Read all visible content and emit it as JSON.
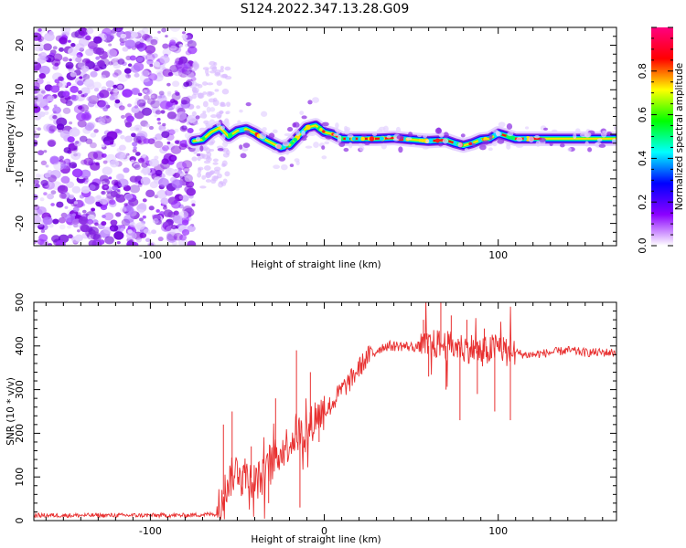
{
  "title": "S124.2022.347.13.28.G09",
  "chart_data": [
    {
      "type": "heatmap",
      "xlabel": "Height of straight line (km)",
      "ylabel": "Frequency (Hz)",
      "xlim": [
        -167,
        168
      ],
      "ylim": [
        -25,
        24
      ],
      "xticks": [
        -100,
        0,
        100
      ],
      "xtick_labels": [
        "-100",
        "",
        "100"
      ],
      "yticks": [
        -20,
        -10,
        0,
        10,
        20
      ],
      "yticks_labels": [
        "-20",
        "-10",
        "0",
        "10",
        "20"
      ],
      "colorbar": {
        "label": "Normalized spectral amplitude",
        "range": [
          0,
          1
        ],
        "ticks": [
          0.0,
          0.2,
          0.4,
          0.6,
          0.8
        ],
        "tick_labels": [
          "0.0",
          "0.2",
          "0.4",
          "0.6",
          "0.8"
        ],
        "colors": [
          "#ffffff",
          "#8b00ff",
          "#0000ff",
          "#00ffff",
          "#00ff00",
          "#ffff00",
          "#ff0000",
          "#ff0080"
        ]
      },
      "noise_region": {
        "x": [
          -167,
          -75
        ],
        "y": [
          -25,
          24
        ]
      },
      "ridge": {
        "x": [
          -75,
          -70,
          -65,
          -60,
          -55,
          -50,
          -45,
          -40,
          -35,
          -30,
          -25,
          -20,
          -15,
          -10,
          -5,
          0,
          5,
          10,
          20,
          30,
          40,
          50,
          60,
          70,
          75,
          80,
          85,
          90,
          95,
          100,
          110,
          120,
          130,
          140,
          150,
          160,
          168
        ],
        "y": [
          -1.5,
          -1.2,
          0.5,
          1.5,
          -0.5,
          0.8,
          1.2,
          0.3,
          -1.0,
          -2.0,
          -3.0,
          -2.5,
          -0.5,
          1.5,
          2.0,
          0.5,
          0.0,
          -1.0,
          -1.0,
          -1.0,
          -0.8,
          -1.2,
          -1.5,
          -1.3,
          -2.0,
          -2.5,
          -2.0,
          -1.2,
          -1.0,
          0.2,
          -1.0,
          -1.0,
          -1.0,
          -1.0,
          -1.0,
          -1.0,
          -1.0
        ]
      }
    },
    {
      "type": "line",
      "xlabel": "Height of straight line (km)",
      "ylabel": "SNR (10 * v/v)",
      "xlim": [
        -167,
        168
      ],
      "ylim": [
        0,
        500
      ],
      "xticks": [
        -100,
        0,
        100
      ],
      "xtick_labels": [
        "-100",
        "0",
        "100"
      ],
      "yticks": [
        0,
        100,
        200,
        300,
        400,
        500
      ],
      "ytick_labels": [
        "0",
        "100",
        "200",
        "300",
        "400",
        "500"
      ],
      "color": "#e83030",
      "series": [
        {
          "x": [
            -167,
            -140,
            -110,
            -80,
            -62,
            -60,
            -55,
            -50,
            -45,
            -40,
            -35,
            -30,
            -25,
            -20,
            -15,
            -10,
            -5,
            0,
            5,
            10,
            15,
            20,
            25,
            30,
            35,
            40,
            45,
            50,
            55,
            60,
            65,
            70,
            75,
            80,
            85,
            90,
            95,
            100,
            105,
            110,
            115,
            120,
            130,
            140,
            150,
            160,
            168
          ],
          "y": [
            12,
            12,
            12,
            12,
            15,
            40,
            90,
            120,
            110,
            90,
            100,
            130,
            160,
            180,
            200,
            200,
            240,
            250,
            270,
            300,
            320,
            350,
            375,
            390,
            400,
            400,
            400,
            398,
            398,
            400,
            405,
            400,
            400,
            395,
            395,
            385,
            390,
            400,
            385,
            385,
            380,
            380,
            385,
            390,
            385,
            385,
            385
          ]
        }
      ],
      "spikes": [
        {
          "x": -58,
          "y": 220
        },
        {
          "x": -53,
          "y": 250
        },
        {
          "x": -47,
          "y": 60
        },
        {
          "x": -42,
          "y": 170
        },
        {
          "x": -32,
          "y": 40
        },
        {
          "x": -28,
          "y": 280
        },
        {
          "x": -16,
          "y": 390
        },
        {
          "x": -14,
          "y": 30
        },
        {
          "x": -8,
          "y": 340
        },
        {
          "x": -3,
          "y": 180
        },
        {
          "x": 57,
          "y": 460
        },
        {
          "x": 60,
          "y": 330
        },
        {
          "x": 67,
          "y": 500
        },
        {
          "x": 70,
          "y": 300
        },
        {
          "x": 73,
          "y": 470
        },
        {
          "x": 78,
          "y": 230
        },
        {
          "x": 82,
          "y": 460
        },
        {
          "x": 88,
          "y": 290
        },
        {
          "x": 92,
          "y": 440
        },
        {
          "x": 98,
          "y": 250
        },
        {
          "x": 103,
          "y": 420
        },
        {
          "x": 107,
          "y": 230
        }
      ]
    }
  ]
}
